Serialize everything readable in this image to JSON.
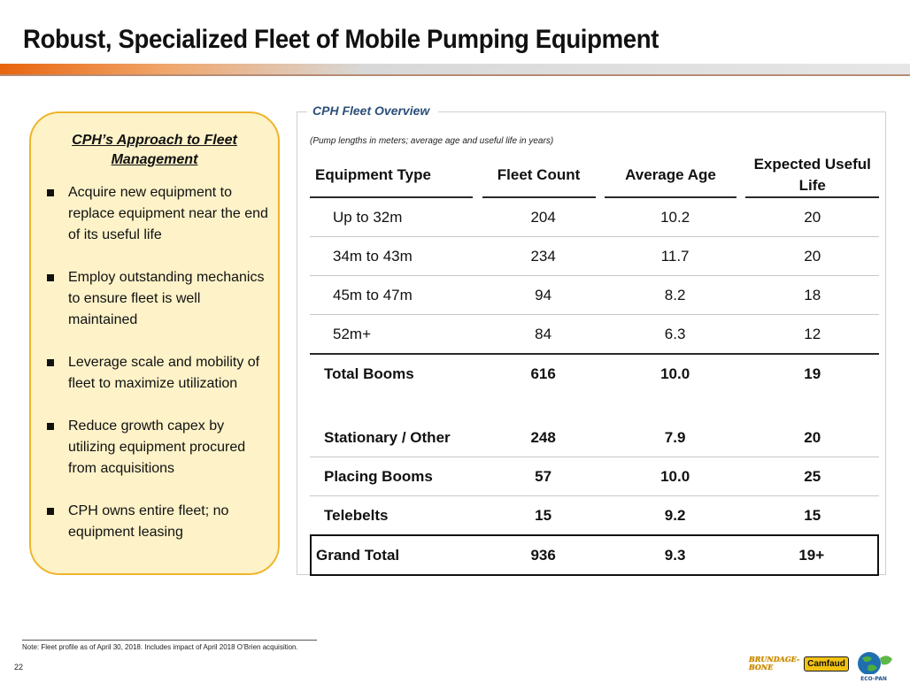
{
  "page": {
    "title": "Robust, Specialized Fleet of Mobile Pumping Equipment",
    "page_number": "22",
    "footnote": "Note: Fleet profile as of April 30, 2018. Includes impact of April 2018 O’Brien acquisition."
  },
  "approach": {
    "title": "CPH’s Approach to Fleet Management",
    "bullets": [
      "Acquire new equipment to replace equipment near the end of its useful life",
      "Employ outstanding mechanics to ensure fleet is well maintained",
      "Leverage scale and mobility of fleet to maximize utilization",
      "Reduce growth capex by utilizing equipment procured from acquisitions",
      "CPH owns entire fleet; no equipment leasing"
    ]
  },
  "fleet": {
    "label": "CPH Fleet Overview",
    "note": "(Pump lengths in meters; average age and useful life in years)",
    "headers": {
      "type": "Equipment Type",
      "count": "Fleet Count",
      "age": "Average Age",
      "life": "Expected Useful Life"
    },
    "boom_rows": [
      {
        "type": "Up to 32m",
        "count": "204",
        "age": "10.2",
        "life": "20"
      },
      {
        "type": "34m to 43m",
        "count": "234",
        "age": "11.7",
        "life": "20"
      },
      {
        "type": "45m to 47m",
        "count": "94",
        "age": "8.2",
        "life": "18"
      },
      {
        "type": "52m+",
        "count": "84",
        "age": "6.3",
        "life": "12"
      }
    ],
    "total_booms": {
      "type": "Total Booms",
      "count": "616",
      "age": "10.0",
      "life": "19"
    },
    "other_rows": [
      {
        "type": "Stationary / Other",
        "count": "248",
        "age": "7.9",
        "life": "20"
      },
      {
        "type": "Placing Booms",
        "count": "57",
        "age": "10.0",
        "life": "25"
      },
      {
        "type": "Telebelts",
        "count": "15",
        "age": "9.2",
        "life": "15"
      }
    ],
    "grand_total": {
      "type": "Grand Total",
      "count": "936",
      "age": "9.3",
      "life": "19+"
    }
  },
  "logos": {
    "brundage_line1": "BRUNDAGE-",
    "brundage_line2": "BONE",
    "camfaud": "Camfaud",
    "ecopan": "ECO-PAN"
  },
  "colors": {
    "accent_orange": "#e8650e",
    "callout_fill": "#fdf2c8",
    "callout_border": "#f0b42a",
    "panel_label": "#2b4f7a"
  }
}
